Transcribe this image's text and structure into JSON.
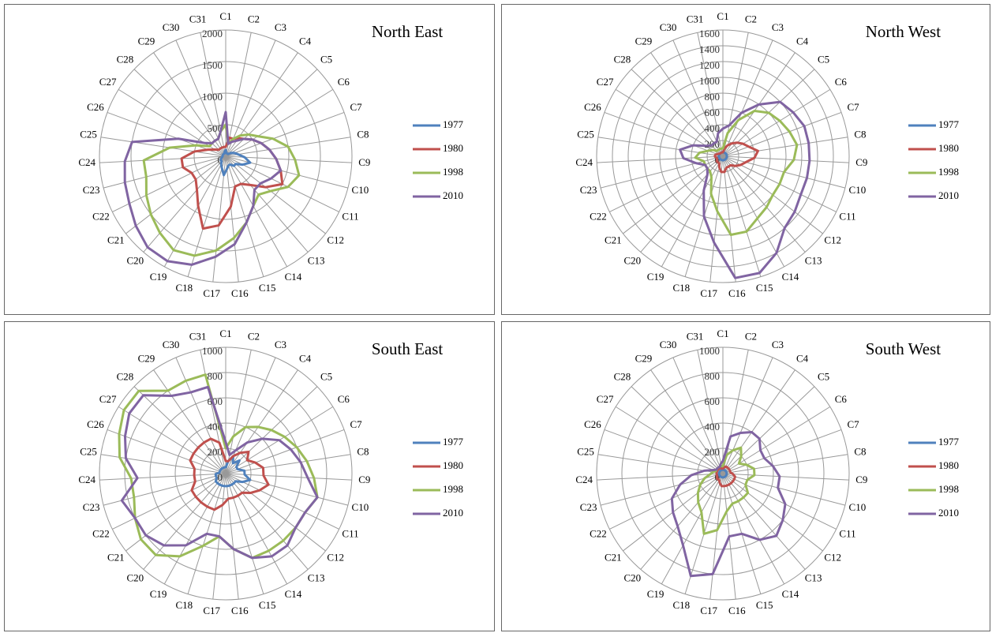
{
  "chart_data": [
    {
      "type": "radar",
      "title": "North East",
      "categories": [
        "C1",
        "C2",
        "C3",
        "C4",
        "C5",
        "C6",
        "C7",
        "C8",
        "C9",
        "C10",
        "C11",
        "C12",
        "C13",
        "C14",
        "C15",
        "C16",
        "C17",
        "C18",
        "C19",
        "C20",
        "C21",
        "C22",
        "C23",
        "C24",
        "C25",
        "C26",
        "C27",
        "C28",
        "C29",
        "C30",
        "C31"
      ],
      "ylim": [
        0,
        2000
      ],
      "yticks": [
        0,
        500,
        1000,
        1500,
        2000
      ],
      "grid": true,
      "legend": "right",
      "series": [
        {
          "name": "1977",
          "color": "#4f81bd",
          "values": [
            100,
            50,
            50,
            50,
            50,
            100,
            150,
            200,
            300,
            400,
            300,
            200,
            200,
            150,
            150,
            200,
            300,
            200,
            150,
            100,
            100,
            80,
            60,
            50,
            50,
            50,
            50,
            50,
            50,
            50,
            80
          ]
        },
        {
          "name": "1980",
          "color": "#c0504d",
          "values": [
            150,
            300,
            300,
            350,
            400,
            500,
            600,
            700,
            800,
            900,
            1000,
            800,
            600,
            500,
            500,
            800,
            1100,
            1200,
            900,
            700,
            600,
            600,
            700,
            700,
            500,
            300,
            200,
            150,
            150,
            150,
            150
          ]
        },
        {
          "name": "1998",
          "color": "#9bbb59",
          "values": [
            500,
            200,
            300,
            400,
            500,
            600,
            800,
            1000,
            1100,
            1200,
            1100,
            900,
            800,
            900,
            1100,
            1300,
            1500,
            1650,
            1700,
            1600,
            1500,
            1400,
            1300,
            1300,
            900,
            500,
            300,
            300,
            300,
            300,
            400
          ]
        },
        {
          "name": "2010",
          "color": "#8064a2",
          "values": [
            700,
            200,
            250,
            300,
            400,
            500,
            600,
            700,
            800,
            900,
            800,
            700,
            700,
            900,
            1100,
            1400,
            1600,
            1800,
            1900,
            1900,
            1800,
            1700,
            1650,
            1600,
            1500,
            800,
            400,
            300,
            300,
            300,
            400
          ]
        }
      ]
    },
    {
      "type": "radar",
      "title": "North West",
      "categories": [
        "C1",
        "C2",
        "C3",
        "C4",
        "C5",
        "C6",
        "C7",
        "C8",
        "C9",
        "C10",
        "C11",
        "C12",
        "C13",
        "C14",
        "C15",
        "C16",
        "C17",
        "C18",
        "C19",
        "C20",
        "C21",
        "C22",
        "C23",
        "C24",
        "C25",
        "C26",
        "C27",
        "C28",
        "C29",
        "C30",
        "C31"
      ],
      "ylim": [
        0,
        1600
      ],
      "yticks": [
        0,
        200,
        400,
        600,
        800,
        1000,
        1200,
        1400,
        1600
      ],
      "grid": true,
      "legend": "right",
      "series": [
        {
          "name": "1977",
          "color": "#4f81bd",
          "values": [
            50,
            50,
            50,
            50,
            50,
            50,
            50,
            50,
            50,
            50,
            50,
            50,
            50,
            50,
            50,
            50,
            50,
            50,
            50,
            50,
            50,
            50,
            50,
            50,
            50,
            50,
            50,
            50,
            50,
            50,
            50
          ]
        },
        {
          "name": "1980",
          "color": "#c0504d",
          "values": [
            50,
            100,
            150,
            200,
            250,
            300,
            350,
            450,
            400,
            300,
            250,
            200,
            150,
            150,
            150,
            200,
            200,
            150,
            100,
            100,
            100,
            80,
            80,
            100,
            100,
            80,
            60,
            50,
            50,
            50,
            50
          ]
        },
        {
          "name": "1998",
          "color": "#9bbb59",
          "values": [
            100,
            300,
            500,
            700,
            800,
            850,
            900,
            950,
            900,
            800,
            800,
            800,
            850,
            900,
            1000,
            1000,
            700,
            500,
            300,
            250,
            250,
            250,
            250,
            350,
            300,
            200,
            150,
            100,
            100,
            100,
            100
          ]
        },
        {
          "name": "2010",
          "color": "#8064a2",
          "values": [
            350,
            400,
            600,
            800,
            1000,
            1050,
            1100,
            1100,
            1100,
            1100,
            1100,
            1150,
            1200,
            1400,
            1550,
            1550,
            1100,
            800,
            500,
            300,
            250,
            250,
            350,
            500,
            550,
            400,
            250,
            200,
            200,
            200,
            300
          ]
        }
      ]
    },
    {
      "type": "radar",
      "title": "South East",
      "categories": [
        "C1",
        "C2",
        "C3",
        "C4",
        "C5",
        "C6",
        "C7",
        "C8",
        "C9",
        "C10",
        "C11",
        "C12",
        "C13",
        "C14",
        "C15",
        "C16",
        "C17",
        "C18",
        "C19",
        "C20",
        "C21",
        "C22",
        "C23",
        "C24",
        "C25",
        "C26",
        "C27",
        "C28",
        "C29",
        "C30",
        "C31"
      ],
      "ylim": [
        0,
        1000
      ],
      "yticks": [
        0,
        200,
        400,
        600,
        800,
        1000
      ],
      "grid": true,
      "legend": "right",
      "series": [
        {
          "name": "1977",
          "color": "#4f81bd",
          "values": [
            50,
            100,
            150,
            100,
            150,
            100,
            100,
            150,
            150,
            200,
            150,
            100,
            100,
            100,
            100,
            100,
            100,
            100,
            100,
            100,
            100,
            80,
            80,
            80,
            50,
            50,
            50,
            50,
            50,
            50,
            50
          ]
        },
        {
          "name": "1980",
          "color": "#c0504d",
          "values": [
            100,
            100,
            150,
            200,
            250,
            200,
            250,
            300,
            300,
            350,
            300,
            250,
            200,
            200,
            200,
            200,
            250,
            300,
            300,
            300,
            300,
            300,
            250,
            250,
            250,
            300,
            300,
            300,
            300,
            300,
            250
          ]
        },
        {
          "name": "1998",
          "color": "#9bbb59",
          "values": [
            200,
            300,
            400,
            450,
            500,
            550,
            600,
            650,
            700,
            750,
            700,
            700,
            700,
            700,
            700,
            600,
            500,
            600,
            750,
            850,
            850,
            800,
            750,
            750,
            850,
            900,
            950,
            950,
            800,
            800,
            800
          ]
        },
        {
          "name": "2010",
          "color": "#8064a2",
          "values": [
            250,
            150,
            200,
            300,
            400,
            500,
            550,
            600,
            650,
            750,
            700,
            700,
            750,
            750,
            700,
            600,
            500,
            500,
            650,
            750,
            800,
            800,
            850,
            700,
            800,
            850,
            900,
            900,
            750,
            700,
            700
          ]
        }
      ]
    },
    {
      "type": "radar",
      "title": "South West",
      "categories": [
        "C1",
        "C2",
        "C3",
        "C4",
        "C5",
        "C6",
        "C7",
        "C8",
        "C9",
        "C10",
        "C11",
        "C12",
        "C13",
        "C14",
        "C15",
        "C16",
        "C17",
        "C18",
        "C19",
        "C20",
        "C21",
        "C22",
        "C23",
        "C24",
        "C25",
        "C26",
        "C27",
        "C28",
        "C29",
        "C30",
        "C31"
      ],
      "ylim": [
        0,
        1000
      ],
      "yticks": [
        0,
        200,
        400,
        600,
        800,
        1000
      ],
      "grid": true,
      "legend": "right",
      "series": [
        {
          "name": "1977",
          "color": "#4f81bd",
          "values": [
            30,
            30,
            30,
            30,
            30,
            30,
            30,
            30,
            30,
            30,
            30,
            30,
            30,
            30,
            30,
            30,
            30,
            30,
            30,
            30,
            30,
            30,
            30,
            30,
            30,
            30,
            30,
            30,
            30,
            30,
            30
          ]
        },
        {
          "name": "1980",
          "color": "#c0504d",
          "values": [
            40,
            50,
            60,
            60,
            60,
            60,
            60,
            60,
            80,
            100,
            100,
            100,
            100,
            100,
            100,
            100,
            100,
            80,
            60,
            60,
            60,
            50,
            50,
            50,
            50,
            50,
            50,
            50,
            50,
            50,
            40
          ]
        },
        {
          "name": "1998",
          "color": "#9bbb59",
          "values": [
            60,
            150,
            200,
            250,
            200,
            150,
            200,
            250,
            250,
            200,
            200,
            250,
            250,
            250,
            250,
            300,
            450,
            500,
            350,
            300,
            250,
            200,
            150,
            100,
            80,
            60,
            60,
            60,
            60,
            60,
            60
          ]
        },
        {
          "name": "2010",
          "color": "#8064a2",
          "values": [
            100,
            300,
            350,
            400,
            400,
            350,
            350,
            400,
            450,
            450,
            550,
            600,
            650,
            600,
            500,
            500,
            800,
            850,
            650,
            550,
            500,
            450,
            350,
            250,
            150,
            80,
            60,
            60,
            60,
            60,
            80
          ]
        }
      ]
    }
  ]
}
